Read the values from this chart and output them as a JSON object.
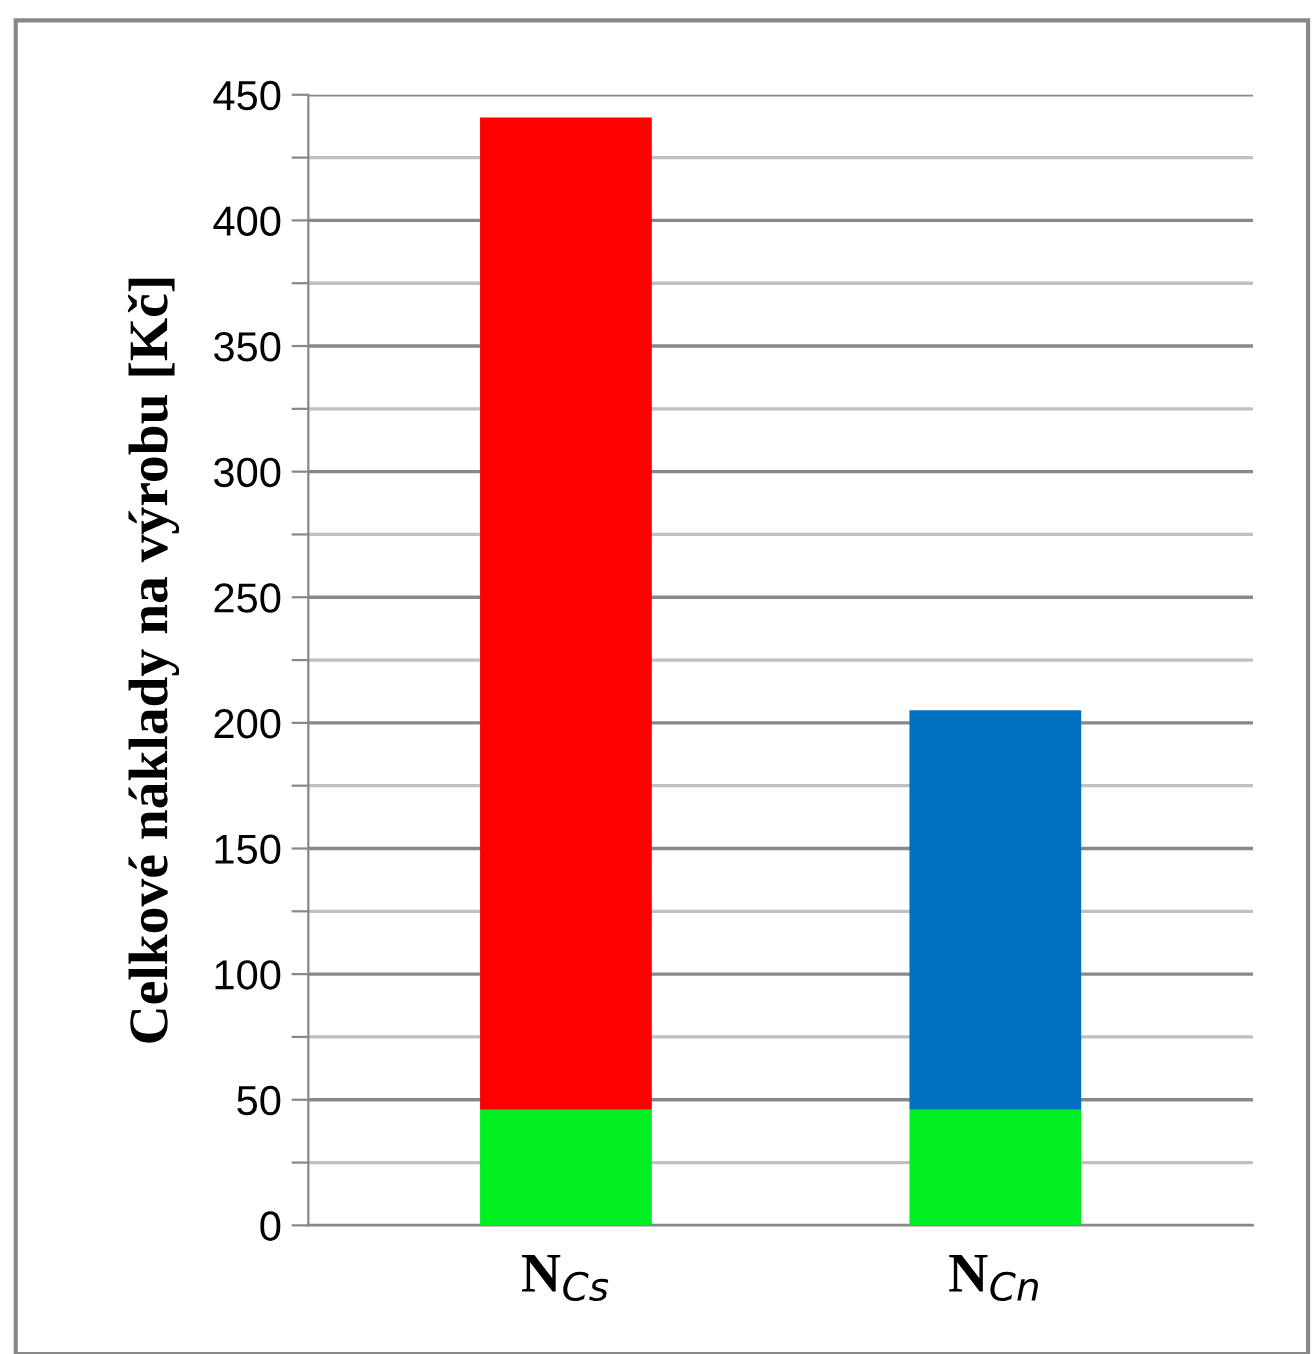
{
  "chart_data": {
    "type": "bar",
    "stacked": true,
    "ylabel": "Celkové náklady na výrobu [Kč]",
    "categories": [
      "N$_{Cs}$",
      "N$_{Cn}$"
    ],
    "series": [
      {
        "color": "#00ee22",
        "values": [
          46,
          46
        ]
      },
      {
        "color": "#ff0000",
        "values": [
          395,
          null
        ]
      },
      {
        "color": "#0070c0",
        "values": [
          null,
          159
        ]
      }
    ],
    "ylim": [
      0,
      450
    ],
    "yticks": [
      0,
      {
        "value": 25,
        "label": null
      },
      50,
      {
        "value": 75,
        "label": null
      },
      100,
      {
        "value": 125,
        "label": null
      },
      150,
      {
        "value": 175,
        "label": null
      },
      200,
      {
        "value": 225,
        "label": null
      },
      250,
      {
        "value": 275,
        "label": null
      },
      300,
      {
        "value": 325,
        "label": null
      },
      350,
      {
        "value": 375,
        "label": null
      },
      400,
      {
        "value": 425,
        "label": null
      },
      450
    ],
    "grid": "y"
  }
}
